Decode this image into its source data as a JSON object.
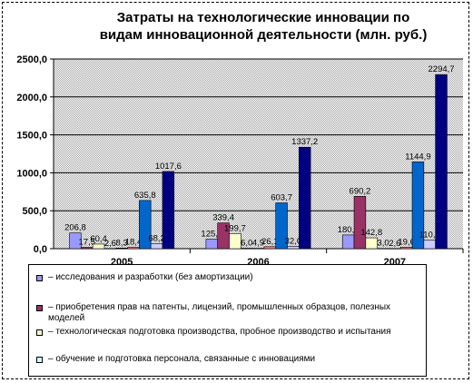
{
  "title_line1": "Затраты на технологические инновации  по",
  "title_line2": "видам инновационной деятельности (млн. руб.)",
  "chart_data": {
    "type": "bar",
    "title": "Затраты на технологические инновации  по видам инновационной деятельности (млн. руб.)",
    "categories": [
      "2005",
      "2006",
      "2007"
    ],
    "ylim": [
      0,
      2500
    ],
    "yticks": [
      "0,0",
      "500,0",
      "1000,0",
      "1500,0",
      "2000,0",
      "2500,0"
    ],
    "grid": true,
    "legend_position": "bottom",
    "series": [
      {
        "name": "– исследования и разработки (без амортизации)",
        "color": "#9999ff",
        "values": [
          206.8,
          125.4,
          180.9
        ],
        "labels": [
          "206,8",
          "125,4",
          "180,9"
        ]
      },
      {
        "name": "– приобретения прав на патенты, лицензий, промышленных образцов, полезных моделей",
        "color": "#993366",
        "values": [
          17.5,
          339.4,
          690.2
        ],
        "labels": [
          "17,5",
          "339,4",
          "690,2"
        ]
      },
      {
        "name": "– технологическая подготовка производства, пробное производство и испытания",
        "color": "#ffffcc",
        "values": [
          60.4,
          199.7,
          142.8
        ],
        "labels": [
          "60,4",
          "199,7",
          "142,8"
        ]
      },
      {
        "name": "– обучение и подготовка персонала, связанные с инновациями",
        "color": "#ccffff",
        "values": [
          2.6,
          6.0,
          3.0
        ],
        "labels": [
          "2,6",
          "6,0",
          "3,0"
        ]
      },
      {
        "name": "",
        "color": "#660066",
        "values": [
          8.3,
          4.9,
          2.6
        ],
        "labels": [
          "8,3",
          "4,9",
          "2,6"
        ]
      },
      {
        "name": "",
        "color": "#ff8080",
        "values": [
          18.4,
          26.1,
          19.6
        ],
        "labels": [
          "18,4",
          "26,1",
          "19,6"
        ]
      },
      {
        "name": "",
        "color": "#0066cc",
        "values": [
          635.8,
          603.7,
          1144.9
        ],
        "labels": [
          "635,8",
          "603,7",
          "1144,9"
        ]
      },
      {
        "name": "",
        "color": "#ccccff",
        "values": [
          68.2,
          32.0,
          110.7
        ],
        "labels": [
          "68,2",
          "32,0",
          "110,7"
        ]
      },
      {
        "name": "",
        "color": "#000080",
        "values": [
          1017.6,
          1337.2,
          2294.7
        ],
        "labels": [
          "1017,6",
          "1337,2",
          "2294,7"
        ]
      }
    ]
  }
}
